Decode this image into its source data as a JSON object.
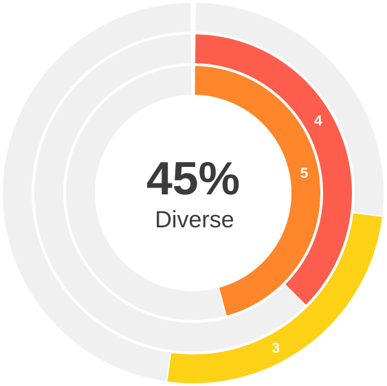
{
  "chart_data": {
    "type": "radial-bar",
    "center": {
      "value": "45%",
      "caption": "Diverse"
    },
    "track_color": "#f1f0f1",
    "rings": [
      {
        "label": "3",
        "start_deg": 97,
        "end_deg": 188,
        "color": "#fdd116",
        "label_deg": 152
      },
      {
        "label": "4",
        "start_deg": 0,
        "end_deg": 135,
        "color": "#fc5d4c",
        "label_deg": 60
      },
      {
        "label": "5",
        "start_deg": 0,
        "end_deg": 165,
        "color": "#fc8629",
        "label_deg": 80
      }
    ]
  }
}
